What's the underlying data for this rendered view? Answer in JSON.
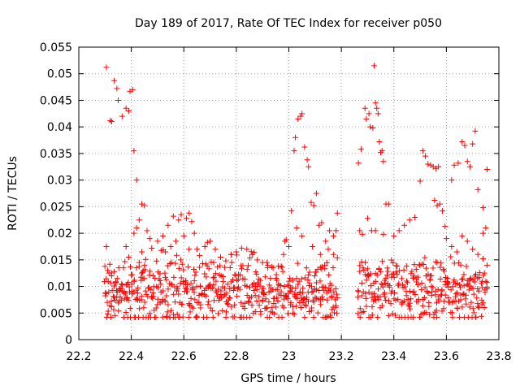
{
  "chart_data": {
    "type": "scatter",
    "title": "Day 189 of 2017, Rate Of TEC Index for receiver p050",
    "xlabel": "GPS time / hours",
    "ylabel": "ROTI / TECUs",
    "xlim": [
      22.2,
      23.8
    ],
    "ylim": [
      0,
      0.055
    ],
    "xticks": [
      "22.2",
      "22.4",
      "22.6",
      "22.8",
      "23",
      "23.2",
      "23.4",
      "23.6",
      "23.8"
    ],
    "yticks": [
      "0",
      "0.005",
      "0.01",
      "0.015",
      "0.02",
      "0.025",
      "0.03",
      "0.035",
      "0.04",
      "0.045",
      "0.05",
      "0.055"
    ],
    "grid": true,
    "marker": "+",
    "color": "#ff0000",
    "series": [
      {
        "name": "p050",
        "points": [
          [
            22.305,
            0.0512
          ],
          [
            22.32,
            0.0412
          ],
          [
            22.325,
            0.041
          ],
          [
            22.335,
            0.0487
          ],
          [
            22.345,
            0.0472
          ],
          [
            22.35,
            0.045
          ],
          [
            22.365,
            0.042
          ],
          [
            22.38,
            0.0435
          ],
          [
            22.39,
            0.043
          ],
          [
            22.395,
            0.0467
          ],
          [
            22.405,
            0.047
          ],
          [
            22.41,
            0.0355
          ],
          [
            22.42,
            0.03
          ],
          [
            22.43,
            0.0225
          ],
          [
            22.44,
            0.0255
          ],
          [
            22.45,
            0.0252
          ],
          [
            22.305,
            0.0175
          ],
          [
            22.31,
            0.013
          ],
          [
            22.315,
            0.0125
          ],
          [
            22.325,
            0.012
          ],
          [
            22.335,
            0.0128
          ],
          [
            22.34,
            0.0105
          ],
          [
            22.355,
            0.0095
          ],
          [
            22.37,
            0.0135
          ],
          [
            22.38,
            0.0175
          ],
          [
            22.39,
            0.0155
          ],
          [
            22.41,
            0.02
          ],
          [
            22.42,
            0.021
          ],
          [
            22.43,
            0.0145
          ],
          [
            22.44,
            0.0165
          ],
          [
            22.46,
            0.0205
          ],
          [
            22.47,
            0.019
          ],
          [
            22.44,
            0.0125
          ],
          [
            22.45,
            0.0115
          ],
          [
            22.5,
            0.0185
          ],
          [
            22.52,
            0.0195
          ],
          [
            22.54,
            0.0215
          ],
          [
            22.56,
            0.0232
          ],
          [
            22.58,
            0.0225
          ],
          [
            22.59,
            0.0235
          ],
          [
            22.61,
            0.0228
          ],
          [
            22.62,
            0.0238
          ],
          [
            22.63,
            0.0222
          ],
          [
            22.64,
            0.02
          ],
          [
            22.65,
            0.017
          ],
          [
            22.53,
            0.0165
          ],
          [
            22.55,
            0.0175
          ],
          [
            22.57,
            0.0185
          ],
          [
            22.6,
            0.0195
          ],
          [
            22.62,
            0.017
          ],
          [
            22.66,
            0.0158
          ],
          [
            22.68,
            0.0175
          ],
          [
            22.69,
            0.0183
          ],
          [
            22.7,
            0.0185
          ],
          [
            22.72,
            0.017
          ],
          [
            22.74,
            0.0155
          ],
          [
            22.76,
            0.0148
          ],
          [
            22.78,
            0.016
          ],
          [
            22.8,
            0.0165
          ],
          [
            22.82,
            0.0172
          ],
          [
            22.84,
            0.017
          ],
          [
            22.86,
            0.016
          ],
          [
            22.88,
            0.015
          ],
          [
            22.9,
            0.0145
          ],
          [
            22.92,
            0.014
          ],
          [
            22.94,
            0.0135
          ],
          [
            22.96,
            0.0138
          ],
          [
            22.98,
            0.016
          ],
          [
            22.99,
            0.0188
          ],
          [
            22.985,
            0.0185
          ],
          [
            23.0,
            0.0175
          ],
          [
            23.01,
            0.0242
          ],
          [
            23.02,
            0.0355
          ],
          [
            23.025,
            0.038
          ],
          [
            23.035,
            0.0415
          ],
          [
            23.045,
            0.042
          ],
          [
            23.05,
            0.0425
          ],
          [
            23.06,
            0.0362
          ],
          [
            23.07,
            0.0338
          ],
          [
            23.075,
            0.0325
          ],
          [
            23.085,
            0.0258
          ],
          [
            23.095,
            0.0252
          ],
          [
            23.105,
            0.0275
          ],
          [
            23.115,
            0.0215
          ],
          [
            23.125,
            0.022
          ],
          [
            23.14,
            0.0185
          ],
          [
            23.155,
            0.0205
          ],
          [
            23.17,
            0.0195
          ],
          [
            23.18,
            0.0205
          ],
          [
            23.185,
            0.0238
          ],
          [
            23.03,
            0.021
          ],
          [
            23.05,
            0.0195
          ],
          [
            23.09,
            0.0175
          ],
          [
            23.12,
            0.016
          ],
          [
            23.15,
            0.017
          ],
          [
            23.17,
            0.016
          ],
          [
            23.265,
            0.0332
          ],
          [
            23.275,
            0.0358
          ],
          [
            23.29,
            0.0435
          ],
          [
            23.295,
            0.0415
          ],
          [
            23.305,
            0.0425
          ],
          [
            23.31,
            0.04
          ],
          [
            23.32,
            0.0398
          ],
          [
            23.325,
            0.0515
          ],
          [
            23.33,
            0.0445
          ],
          [
            23.335,
            0.0435
          ],
          [
            23.34,
            0.0425
          ],
          [
            23.345,
            0.0372
          ],
          [
            23.35,
            0.0352
          ],
          [
            23.355,
            0.0355
          ],
          [
            23.36,
            0.0335
          ],
          [
            23.37,
            0.0255
          ],
          [
            23.38,
            0.0255
          ],
          [
            23.3,
            0.0228
          ],
          [
            23.315,
            0.0205
          ],
          [
            23.33,
            0.0205
          ],
          [
            23.36,
            0.0198
          ],
          [
            23.27,
            0.0205
          ],
          [
            23.28,
            0.0198
          ],
          [
            23.4,
            0.0195
          ],
          [
            23.42,
            0.0205
          ],
          [
            23.44,
            0.0215
          ],
          [
            23.46,
            0.0225
          ],
          [
            23.48,
            0.023
          ],
          [
            23.5,
            0.0298
          ],
          [
            23.51,
            0.0355
          ],
          [
            23.52,
            0.0345
          ],
          [
            23.53,
            0.033
          ],
          [
            23.54,
            0.0328
          ],
          [
            23.55,
            0.0325
          ],
          [
            23.56,
            0.0322
          ],
          [
            23.57,
            0.0325
          ],
          [
            23.555,
            0.0262
          ],
          [
            23.565,
            0.0252
          ],
          [
            23.575,
            0.0255
          ],
          [
            23.585,
            0.0242
          ],
          [
            23.595,
            0.0213
          ],
          [
            23.62,
            0.03
          ],
          [
            23.63,
            0.0328
          ],
          [
            23.645,
            0.0332
          ],
          [
            23.66,
            0.0372
          ],
          [
            23.67,
            0.0365
          ],
          [
            23.68,
            0.0335
          ],
          [
            23.69,
            0.0325
          ],
          [
            23.7,
            0.0368
          ],
          [
            23.71,
            0.0392
          ],
          [
            23.72,
            0.0282
          ],
          [
            23.74,
            0.0248
          ],
          [
            23.755,
            0.032
          ],
          [
            23.75,
            0.021
          ],
          [
            23.74,
            0.02
          ],
          [
            23.6,
            0.019
          ],
          [
            23.62,
            0.0175
          ],
          [
            23.64,
            0.0165
          ],
          [
            23.66,
            0.0195
          ],
          [
            23.68,
            0.0185
          ],
          [
            23.7,
            0.017
          ],
          [
            23.72,
            0.016
          ],
          [
            23.74,
            0.0152
          ],
          [
            23.755,
            0.014
          ]
        ]
      }
    ]
  }
}
